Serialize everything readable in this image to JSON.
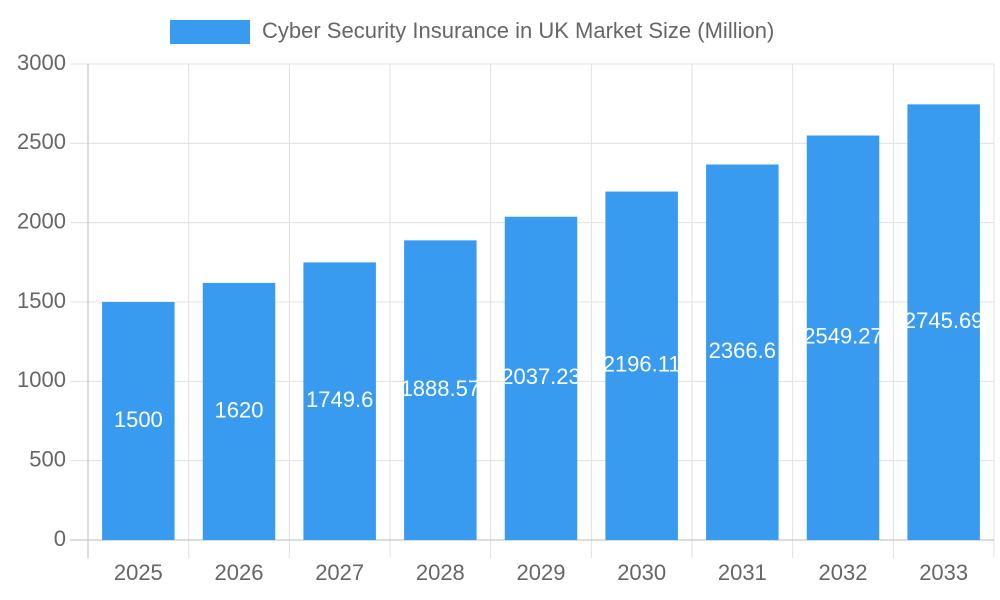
{
  "chart_data": {
    "type": "bar",
    "legend": "Cyber Security Insurance in UK Market Size (Million)",
    "categories": [
      "2025",
      "2026",
      "2027",
      "2028",
      "2029",
      "2030",
      "2031",
      "2032",
      "2033"
    ],
    "values": [
      1500,
      1620,
      1749.6,
      1888.57,
      2037.23,
      2196.11,
      2366.6,
      2549.27,
      2745.69
    ],
    "color": "#399bef",
    "ylim": [
      0,
      3000
    ],
    "yticks": [
      0,
      500,
      1000,
      1500,
      2000,
      2500,
      3000
    ],
    "grid": true
  }
}
